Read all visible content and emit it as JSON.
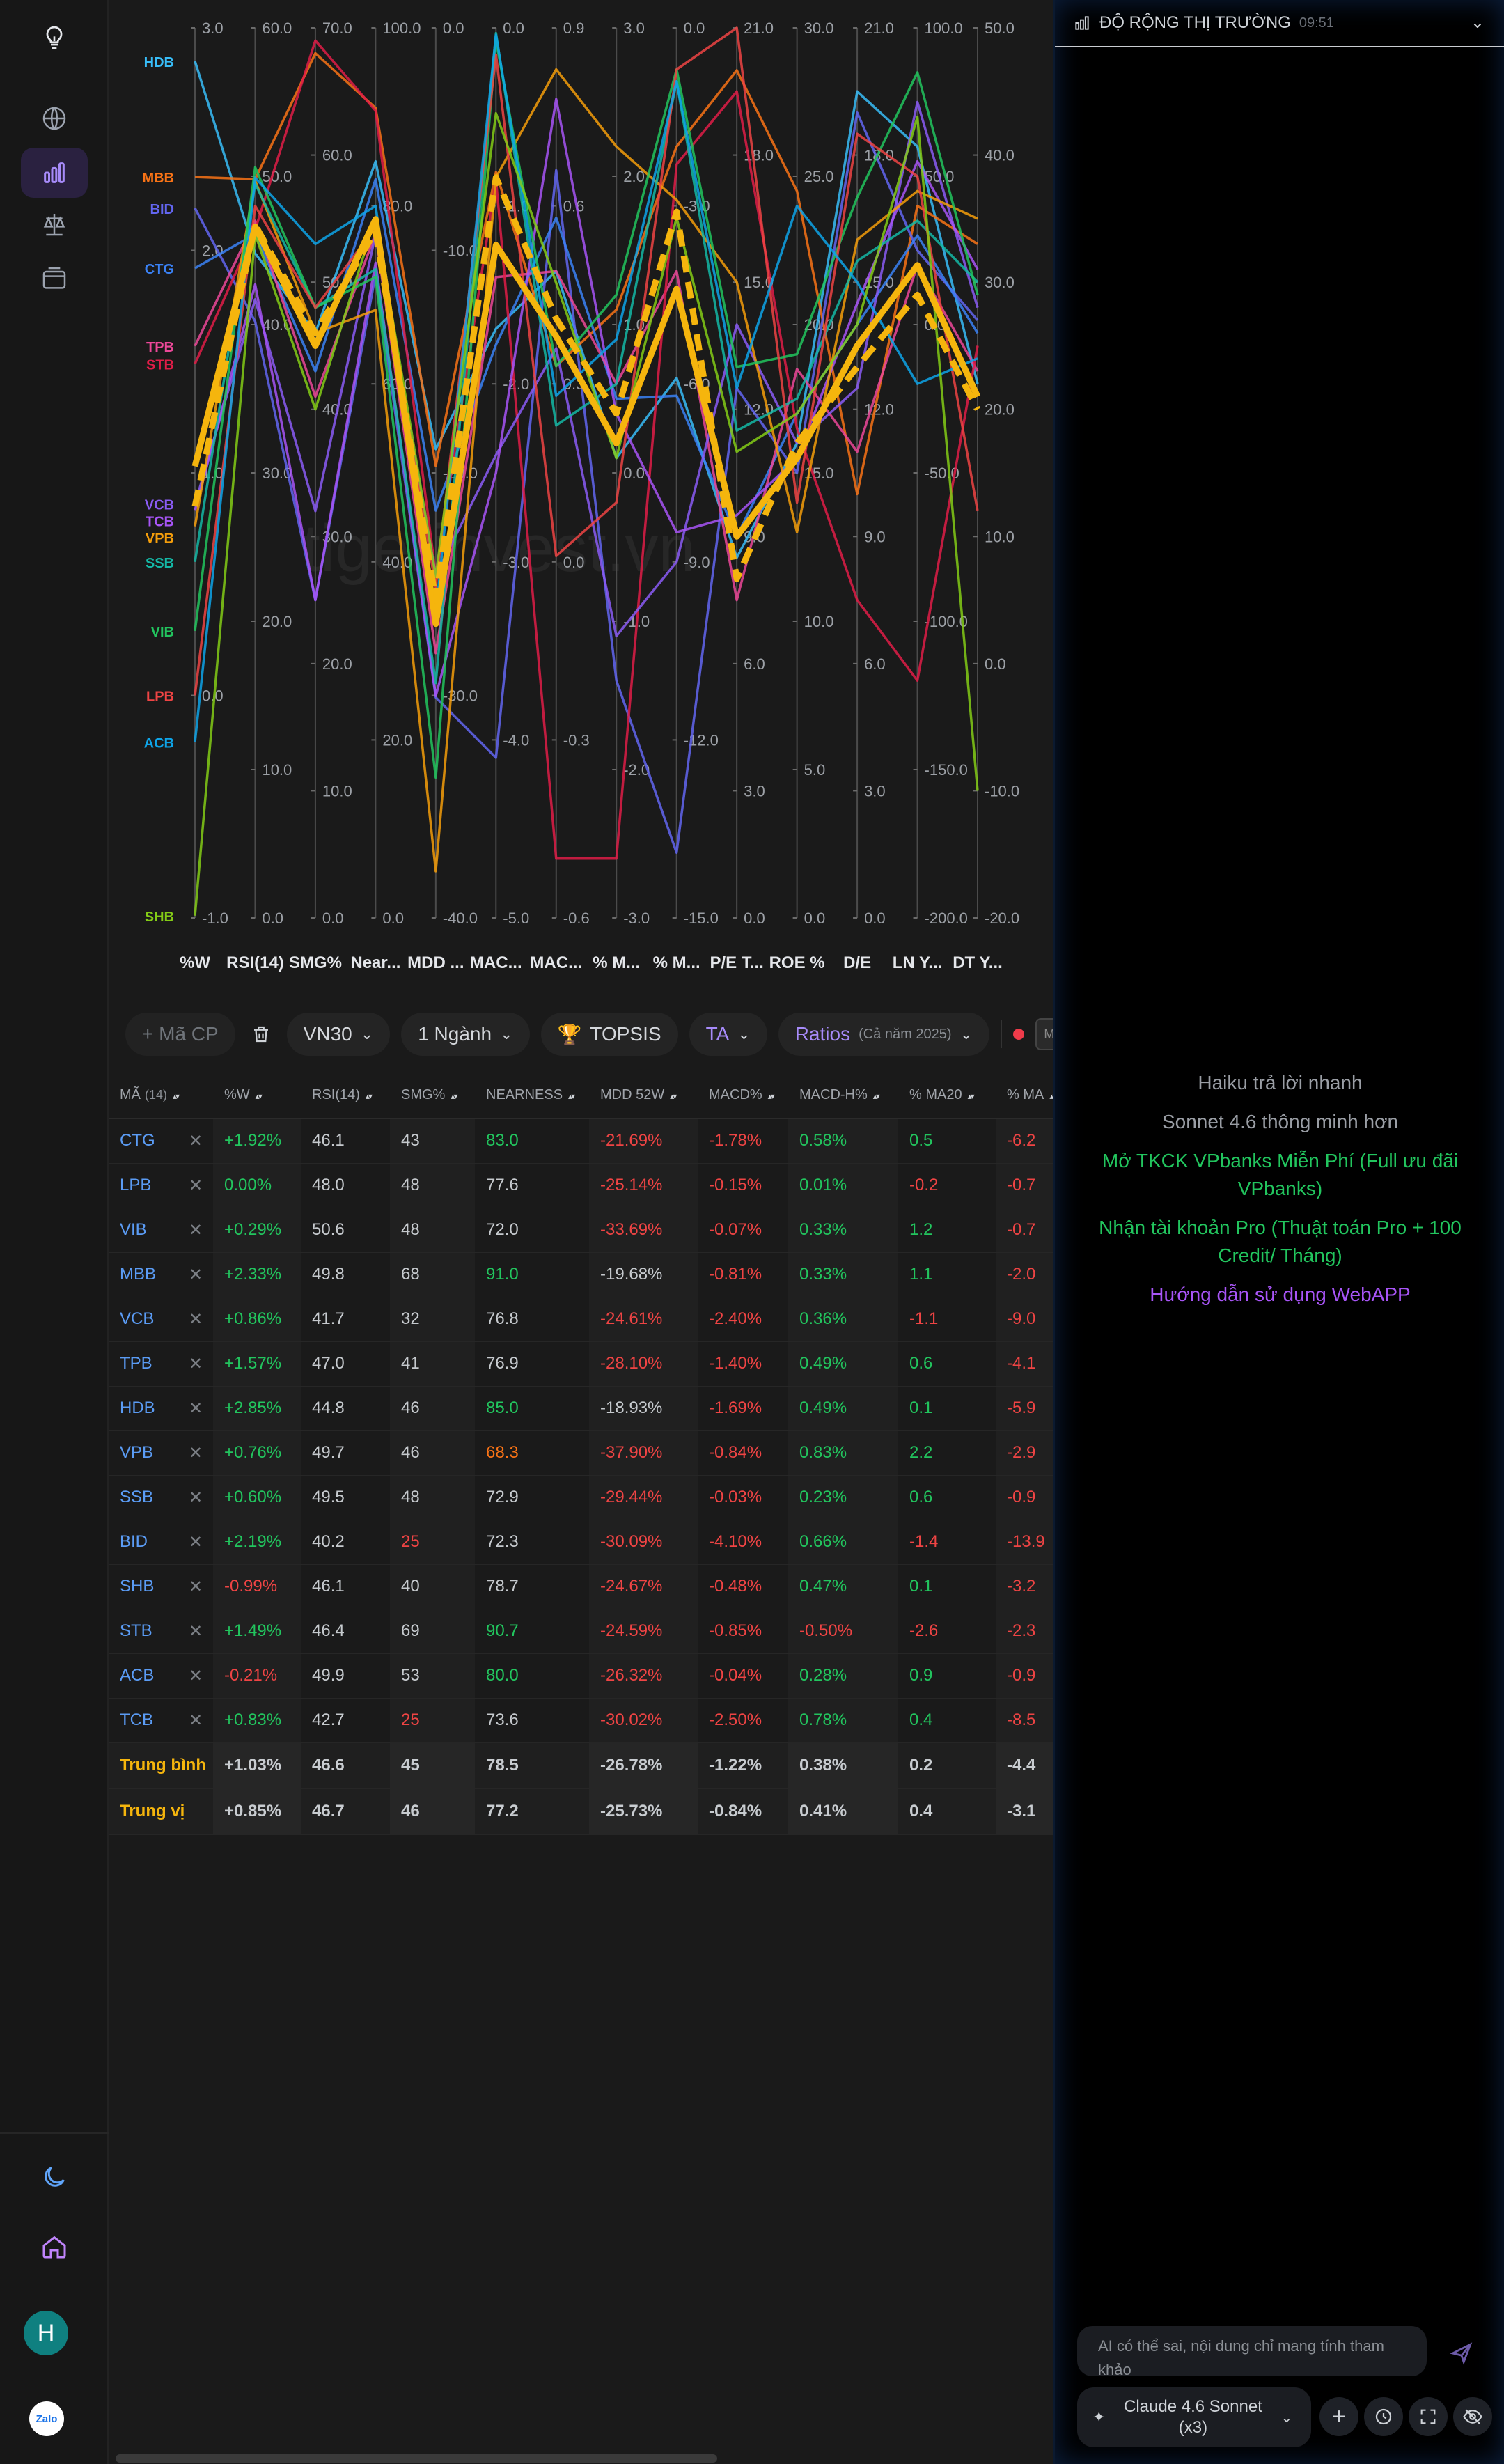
{
  "sidebar": {
    "items": [
      {
        "name": "logo",
        "icon": "lightbulb-icon"
      },
      {
        "name": "market",
        "icon": "globe-icon"
      },
      {
        "name": "analysis",
        "icon": "bar-chart-icon",
        "active": true
      },
      {
        "name": "compare",
        "icon": "scale-icon"
      },
      {
        "name": "portfolio",
        "icon": "wallet-icon"
      }
    ],
    "bottom": [
      {
        "name": "theme",
        "icon": "moon-icon"
      },
      {
        "name": "home",
        "icon": "home-icon"
      }
    ],
    "avatar_letter": "H",
    "zalo_label": "Zalo"
  },
  "chart_data": {
    "type": "parallel-coordinates",
    "watermark": "tigerinvest.vn",
    "axes": [
      {
        "label": "%W",
        "min": -1.0,
        "max": 3.0,
        "ticks": [
          "3.0",
          "2.0",
          "1.0",
          "0.0",
          "-1.0"
        ]
      },
      {
        "label": "RSI(14)",
        "min": 0.0,
        "max": 60.0,
        "ticks": [
          "60.0",
          "50.0",
          "40.0",
          "30.0",
          "20.0",
          "10.0",
          "0.0"
        ]
      },
      {
        "label": "SMG%",
        "min": 0.0,
        "max": 70.0,
        "ticks": [
          "70.0",
          "60.0",
          "50.0",
          "40.0",
          "30.0",
          "20.0",
          "10.0",
          "0.0"
        ]
      },
      {
        "label": "Near...",
        "min": 0.0,
        "max": 100.0,
        "ticks": [
          "100.0",
          "80.0",
          "60.0",
          "40.0",
          "20.0",
          "0.0"
        ]
      },
      {
        "label": "MDD ...",
        "min": -40.0,
        "max": 0.0,
        "ticks": [
          "0.0",
          "-10.0",
          "-20.0",
          "-30.0",
          "-40.0"
        ]
      },
      {
        "label": "MAC...",
        "min": -5.0,
        "max": 0.0,
        "ticks": [
          "0.0",
          "-1.0",
          "-2.0",
          "-3.0",
          "-4.0",
          "-5.0"
        ]
      },
      {
        "label": "MAC...",
        "min": -0.6,
        "max": 0.9,
        "ticks": [
          "0.9",
          "0.6",
          "0.3",
          "0.0",
          "-0.3",
          "-0.6"
        ]
      },
      {
        "label": "% M...",
        "min": -3.0,
        "max": 3.0,
        "ticks": [
          "3.0",
          "2.0",
          "1.0",
          "0.0",
          "-1.0",
          "-2.0",
          "-3.0"
        ]
      },
      {
        "label": "% M...",
        "min": -15.0,
        "max": 0.0,
        "ticks": [
          "0.0",
          "-3.0",
          "-6.0",
          "-9.0",
          "-12.0",
          "-15.0"
        ]
      },
      {
        "label": "P/E T...",
        "min": 0.0,
        "max": 21.0,
        "ticks": [
          "21.0",
          "18.0",
          "15.0",
          "12.0",
          "9.0",
          "6.0",
          "3.0",
          "0.0"
        ]
      },
      {
        "label": "ROE %",
        "min": 0.0,
        "max": 30.0,
        "ticks": [
          "30.0",
          "25.0",
          "20.0",
          "15.0",
          "10.0",
          "5.0",
          "0.0"
        ]
      },
      {
        "label": "D/E",
        "min": 0.0,
        "max": 21.0,
        "ticks": [
          "21.0",
          "18.0",
          "15.0",
          "12.0",
          "9.0",
          "6.0",
          "3.0",
          "0.0"
        ]
      },
      {
        "label": "LN Y...",
        "min": -200.0,
        "max": 100.0,
        "ticks": [
          "100.0",
          "50.0",
          "0.0",
          "-50.0",
          "-100.0",
          "-150.0",
          "-200.0"
        ]
      },
      {
        "label": "DT Y...",
        "min": -20.0,
        "max": 50.0,
        "ticks": [
          "50.0",
          "40.0",
          "30.0",
          "20.0",
          "10.0",
          "0.0",
          "-10.0",
          "-20.0"
        ]
      }
    ],
    "series": [
      {
        "name": "HDB",
        "color": "#38bdf8",
        "values": [
          2.85,
          44.8,
          46,
          85.0,
          -18.93,
          -1.69,
          0.49,
          0.1,
          -5.9,
          8.5,
          16.0,
          19.5,
          60,
          22
        ]
      },
      {
        "name": "MBB",
        "color": "#f97316",
        "values": [
          2.33,
          49.8,
          68,
          91.0,
          -19.68,
          -0.81,
          0.33,
          1.1,
          -2.0,
          20.0,
          24.5,
          10.0,
          40,
          33
        ]
      },
      {
        "name": "BID",
        "color": "#6366f1",
        "values": [
          2.19,
          40.2,
          25,
          72.3,
          -30.09,
          -4.1,
          0.66,
          -1.4,
          -13.9,
          12.5,
          15.0,
          19.0,
          25,
          27
        ]
      },
      {
        "name": "CTG",
        "color": "#3b82f6",
        "values": [
          1.92,
          46.1,
          43,
          83.0,
          -21.69,
          -1.78,
          0.58,
          0.5,
          -6.2,
          9.0,
          17.0,
          14.0,
          30,
          26
        ]
      },
      {
        "name": "TPB",
        "color": "#ec4899",
        "values": [
          1.57,
          47.0,
          41,
          76.9,
          -28.1,
          -1.4,
          0.49,
          0.6,
          -4.1,
          7.5,
          18.5,
          11.0,
          20,
          23
        ]
      },
      {
        "name": "STB",
        "color": "#e11d48",
        "values": [
          1.49,
          46.4,
          69,
          90.7,
          -24.59,
          -0.85,
          -0.5,
          -2.6,
          -2.3,
          19.5,
          16.5,
          7.5,
          -120,
          25
        ]
      },
      {
        "name": "VCB",
        "color": "#8b5cf6",
        "values": [
          0.86,
          41.7,
          32,
          76.8,
          -24.61,
          -2.4,
          0.36,
          -1.1,
          -9.0,
          14.0,
          16.0,
          12.5,
          75,
          28
        ]
      },
      {
        "name": "TCB",
        "color": "#a855f7",
        "values": [
          0.83,
          42.7,
          25,
          73.6,
          -30.02,
          -2.5,
          0.78,
          0.4,
          -8.5,
          9.5,
          15.5,
          14.5,
          55,
          31
        ]
      },
      {
        "name": "VPB",
        "color": "#f59e0b",
        "values": [
          0.76,
          49.7,
          46,
          68.3,
          -37.9,
          -0.84,
          0.83,
          2.2,
          -2.9,
          15.0,
          13.0,
          16.0,
          45,
          35
        ]
      },
      {
        "name": "SSB",
        "color": "#14b8a6",
        "values": [
          0.6,
          49.5,
          48,
          72.9,
          -29.44,
          -0.03,
          0.23,
          0.6,
          -0.9,
          11.5,
          17.5,
          15.5,
          35,
          30
        ]
      },
      {
        "name": "VIB",
        "color": "#22c55e",
        "values": [
          0.29,
          50.6,
          48,
          72.0,
          -33.69,
          -0.07,
          0.33,
          1.2,
          -0.7,
          13.0,
          19.0,
          17.0,
          85,
          29
        ]
      },
      {
        "name": "LPB",
        "color": "#ef4444",
        "values": [
          0.0,
          48.0,
          48,
          77.6,
          -25.14,
          -0.15,
          0.01,
          -0.2,
          -0.7,
          21.0,
          14.0,
          18.5,
          50,
          12
        ]
      },
      {
        "name": "ACB",
        "color": "#0ea5e9",
        "values": [
          -0.21,
          49.9,
          53,
          80.0,
          -26.32,
          -0.04,
          0.28,
          0.9,
          -0.9,
          12.5,
          24.0,
          15.0,
          -20,
          24
        ]
      },
      {
        "name": "SHB",
        "color": "#84cc16",
        "values": [
          -0.99,
          46.1,
          40,
          78.7,
          -24.67,
          -0.48,
          0.47,
          0.1,
          -3.2,
          11.0,
          17.0,
          14.0,
          70,
          -10
        ]
      }
    ],
    "highlight": [
      {
        "name": "Trung bình",
        "color": "#f5b50d",
        "style": "solid",
        "values": [
          1.03,
          46.6,
          45,
          78.5,
          -26.78,
          -1.22,
          0.38,
          0.2,
          -4.4,
          9.0,
          15.5,
          13.5,
          20,
          21
        ]
      },
      {
        "name": "Trung vị",
        "color": "#f5b50d",
        "style": "dashed",
        "values": [
          0.85,
          46.7,
          46,
          77.2,
          -25.73,
          -0.84,
          0.41,
          0.4,
          -3.1,
          8.0,
          16.0,
          13.0,
          10,
          20
        ]
      }
    ]
  },
  "toolbar": {
    "add_placeholder": "+ Mã CP",
    "trash_icon": "trash-icon",
    "index_label": "VN30",
    "sector_label": "1 Ngành",
    "topsis_label": "TOPSIS",
    "topsis_icon": "trophy-icon",
    "ta_label": "TA",
    "ratios_label": "Ratios",
    "ratios_sub": "(Cả năm 2025)",
    "more_label": "M"
  },
  "table": {
    "count_label": "(14)",
    "headers": [
      "MÃ",
      "",
      "%W",
      "RSI(14)",
      "SMG%",
      "NEARNESS",
      "MDD 52W",
      "MACD%",
      "MACD-H%",
      "% MA20",
      "% MA"
    ],
    "rows": [
      {
        "code": "CTG",
        "w": "+1.92%",
        "rsi": "46.1",
        "smg": "43",
        "near": "83.0",
        "mdd": "-21.69%",
        "macd": "-1.78%",
        "macdh": "0.58%",
        "ma20": "0.5",
        "ma": "-6.2"
      },
      {
        "code": "LPB",
        "w": "0.00%",
        "rsi": "48.0",
        "smg": "48",
        "near": "77.6",
        "mdd": "-25.14%",
        "macd": "-0.15%",
        "macdh": "0.01%",
        "ma20": "-0.2",
        "ma": "-0.7"
      },
      {
        "code": "VIB",
        "w": "+0.29%",
        "rsi": "50.6",
        "smg": "48",
        "near": "72.0",
        "mdd": "-33.69%",
        "macd": "-0.07%",
        "macdh": "0.33%",
        "ma20": "1.2",
        "ma": "-0.7"
      },
      {
        "code": "MBB",
        "w": "+2.33%",
        "rsi": "49.8",
        "smg": "68",
        "near": "91.0",
        "mdd": "-19.68%",
        "macd": "-0.81%",
        "macdh": "0.33%",
        "ma20": "1.1",
        "ma": "-2.0"
      },
      {
        "code": "VCB",
        "w": "+0.86%",
        "rsi": "41.7",
        "smg": "32",
        "near": "76.8",
        "mdd": "-24.61%",
        "macd": "-2.40%",
        "macdh": "0.36%",
        "ma20": "-1.1",
        "ma": "-9.0"
      },
      {
        "code": "TPB",
        "w": "+1.57%",
        "rsi": "47.0",
        "smg": "41",
        "near": "76.9",
        "mdd": "-28.10%",
        "macd": "-1.40%",
        "macdh": "0.49%",
        "ma20": "0.6",
        "ma": "-4.1"
      },
      {
        "code": "HDB",
        "w": "+2.85%",
        "rsi": "44.8",
        "smg": "46",
        "near": "85.0",
        "mdd": "-18.93%",
        "macd": "-1.69%",
        "macdh": "0.49%",
        "ma20": "0.1",
        "ma": "-5.9"
      },
      {
        "code": "VPB",
        "w": "+0.76%",
        "rsi": "49.7",
        "smg": "46",
        "near": "68.3",
        "mdd": "-37.90%",
        "macd": "-0.84%",
        "macdh": "0.83%",
        "ma20": "2.2",
        "ma": "-2.9"
      },
      {
        "code": "SSB",
        "w": "+0.60%",
        "rsi": "49.5",
        "smg": "48",
        "near": "72.9",
        "mdd": "-29.44%",
        "macd": "-0.03%",
        "macdh": "0.23%",
        "ma20": "0.6",
        "ma": "-0.9"
      },
      {
        "code": "BID",
        "w": "+2.19%",
        "rsi": "40.2",
        "smg": "25",
        "near": "72.3",
        "mdd": "-30.09%",
        "macd": "-4.10%",
        "macdh": "0.66%",
        "ma20": "-1.4",
        "ma": "-13.9"
      },
      {
        "code": "SHB",
        "w": "-0.99%",
        "rsi": "46.1",
        "smg": "40",
        "near": "78.7",
        "mdd": "-24.67%",
        "macd": "-0.48%",
        "macdh": "0.47%",
        "ma20": "0.1",
        "ma": "-3.2"
      },
      {
        "code": "STB",
        "w": "+1.49%",
        "rsi": "46.4",
        "smg": "69",
        "near": "90.7",
        "mdd": "-24.59%",
        "macd": "-0.85%",
        "macdh": "-0.50%",
        "ma20": "-2.6",
        "ma": "-2.3"
      },
      {
        "code": "ACB",
        "w": "-0.21%",
        "rsi": "49.9",
        "smg": "53",
        "near": "80.0",
        "mdd": "-26.32%",
        "macd": "-0.04%",
        "macdh": "0.28%",
        "ma20": "0.9",
        "ma": "-0.9"
      },
      {
        "code": "TCB",
        "w": "+0.83%",
        "rsi": "42.7",
        "smg": "25",
        "near": "73.6",
        "mdd": "-30.02%",
        "macd": "-2.50%",
        "macdh": "0.78%",
        "ma20": "0.4",
        "ma": "-8.5"
      }
    ],
    "summary": [
      {
        "label": "Trung bình",
        "w": "+1.03%",
        "rsi": "46.6",
        "smg": "45",
        "near": "78.5",
        "mdd": "-26.78%",
        "macd": "-1.22%",
        "macdh": "0.38%",
        "ma20": "0.2",
        "ma": "-4.4"
      },
      {
        "label": "Trung vị",
        "w": "+0.85%",
        "rsi": "46.7",
        "smg": "46",
        "near": "77.2",
        "mdd": "-25.73%",
        "macd": "-0.84%",
        "macdh": "0.41%",
        "ma20": "0.4",
        "ma": "-3.1"
      }
    ]
  },
  "right_panel": {
    "title": "ĐỘ RỘNG THỊ TRƯỜNG",
    "time": "09:51",
    "messages": [
      {
        "text": "Haiku trả lời nhanh",
        "tone": "gray"
      },
      {
        "text": "Sonnet 4.6 thông minh hơn",
        "tone": "gray"
      },
      {
        "text": "Mở TKCK VPbanks Miễn Phí (Full ưu đãi VPbanks)",
        "tone": "green"
      },
      {
        "text": "Nhận tài khoản Pro (Thuật toán Pro + 100 Credit/ Tháng)",
        "tone": "green"
      },
      {
        "text": "Hướng dẫn sử dụng WebAPP",
        "tone": "purple"
      }
    ],
    "input_placeholder": "AI có thể sai, nội dung chỉ mang tính tham khảo",
    "model_label": "Claude 4.6 Sonnet (x3)"
  },
  "colors": {
    "positive": "#22c55e",
    "negative": "#ef4444",
    "accent": "#a78bfa",
    "highlight": "#f5b50d",
    "link": "#5b9cf5"
  }
}
